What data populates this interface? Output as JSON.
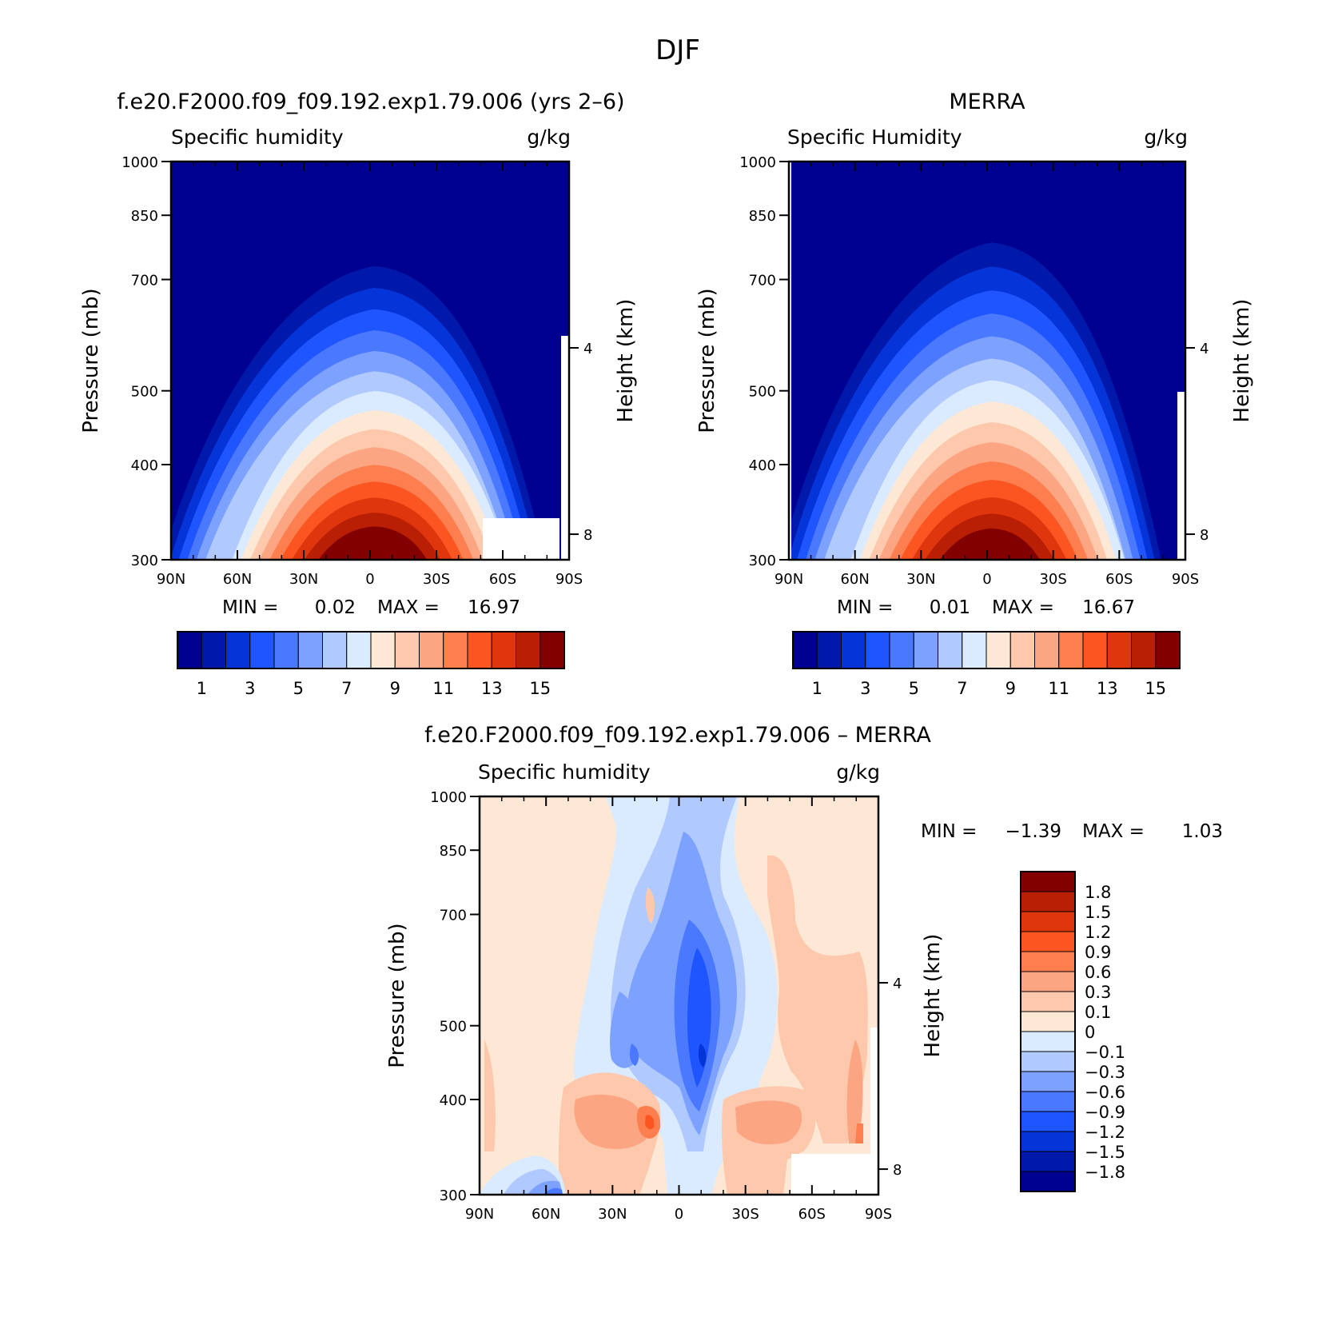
{
  "figure_title": "DJF",
  "chart_data": [
    {
      "type": "heatmap",
      "panel": "model",
      "title": "f.e20.F2000.f09_f09.192.exp1.79.006 (yrs 2–6)",
      "left_label": "Specific humidity",
      "right_label": "g/kg",
      "ylabel": "Pressure (mb)",
      "ylabel_right": "Height (km)",
      "x_ticks": [
        "90N",
        "60N",
        "30N",
        "0",
        "30S",
        "60S",
        "90S"
      ],
      "y_ticks": [
        "300",
        "400",
        "500",
        "700",
        "850",
        "1000"
      ],
      "y_right_ticks": [
        "8",
        "4"
      ],
      "ylim": [
        1000,
        300
      ],
      "min_label": "MIN =",
      "min_value": "0.02",
      "max_label": "MAX =",
      "max_value": "16.97",
      "colorbar_labels": [
        "1",
        "3",
        "5",
        "7",
        "9",
        "11",
        "13",
        "15"
      ],
      "levels": [
        1,
        2,
        3,
        4,
        5,
        6,
        7,
        8,
        9,
        10,
        11,
        12,
        13,
        14,
        15
      ],
      "peak_latitude": 0,
      "peak_value": 16.97,
      "moisture_top_pressure": 400
    },
    {
      "type": "heatmap",
      "panel": "obs",
      "title": "MERRA",
      "left_label": "Specific Humidity",
      "right_label": "g/kg",
      "ylabel": "Pressure (mb)",
      "ylabel_right": "Height (km)",
      "x_ticks": [
        "90N",
        "60N",
        "30N",
        "0",
        "30S",
        "60S",
        "90S"
      ],
      "y_ticks": [
        "300",
        "400",
        "500",
        "700",
        "850",
        "1000"
      ],
      "y_right_ticks": [
        "8",
        "4"
      ],
      "ylim": [
        1000,
        300
      ],
      "min_label": "MIN =",
      "min_value": "0.01",
      "max_label": "MAX =",
      "max_value": "16.67",
      "colorbar_labels": [
        "1",
        "3",
        "5",
        "7",
        "9",
        "11",
        "13",
        "15"
      ],
      "levels": [
        1,
        2,
        3,
        4,
        5,
        6,
        7,
        8,
        9,
        10,
        11,
        12,
        13,
        14,
        15
      ],
      "peak_latitude": 0,
      "peak_value": 16.67,
      "moisture_top_pressure": 370
    },
    {
      "type": "heatmap",
      "panel": "diff",
      "title": "f.e20.F2000.f09_f09.192.exp1.79.006 – MERRA",
      "left_label": "Specific humidity",
      "right_label": "g/kg",
      "ylabel": "Pressure (mb)",
      "ylabel_right": "Height (km)",
      "x_ticks": [
        "90N",
        "60N",
        "30N",
        "0",
        "30S",
        "60S",
        "90S"
      ],
      "y_ticks": [
        "300",
        "400",
        "500",
        "700",
        "850",
        "1000"
      ],
      "y_right_ticks": [
        "8",
        "4"
      ],
      "ylim": [
        1000,
        300
      ],
      "min_label": "MIN =",
      "min_value": "−1.39",
      "max_label": "MAX =",
      "max_value": "1.03",
      "colorbar_labels": [
        "1.8",
        "1.5",
        "1.2",
        "0.9",
        "0.6",
        "0.3",
        "0.1",
        "0",
        "−0.1",
        "−0.3",
        "−0.6",
        "−0.9",
        "−1.2",
        "−1.5",
        "−1.8"
      ],
      "levels": [
        1.8,
        1.5,
        1.2,
        0.9,
        0.6,
        0.3,
        0.1,
        0,
        -0.1,
        -0.3,
        -0.6,
        -0.9,
        -1.2,
        -1.5,
        -1.8
      ]
    }
  ],
  "colors": {
    "seq": [
      "#000090",
      "#0019aa",
      "#0535d9",
      "#1f55ff",
      "#4a78ff",
      "#7da1ff",
      "#b0c9ff",
      "#daeaff",
      "#fde8d6",
      "#fdc8ab",
      "#fca583",
      "#fd7f4f",
      "#fb5522",
      "#e0360d",
      "#b91f05",
      "#830000"
    ],
    "div": [
      "#830000",
      "#b91f05",
      "#e0360d",
      "#fb5522",
      "#fd7f4f",
      "#fca583",
      "#fdc8ab",
      "#fde8d6",
      "#daeaff",
      "#b0c9ff",
      "#7da1ff",
      "#4a78ff",
      "#1f55ff",
      "#0535d9",
      "#0019aa",
      "#000090"
    ]
  }
}
